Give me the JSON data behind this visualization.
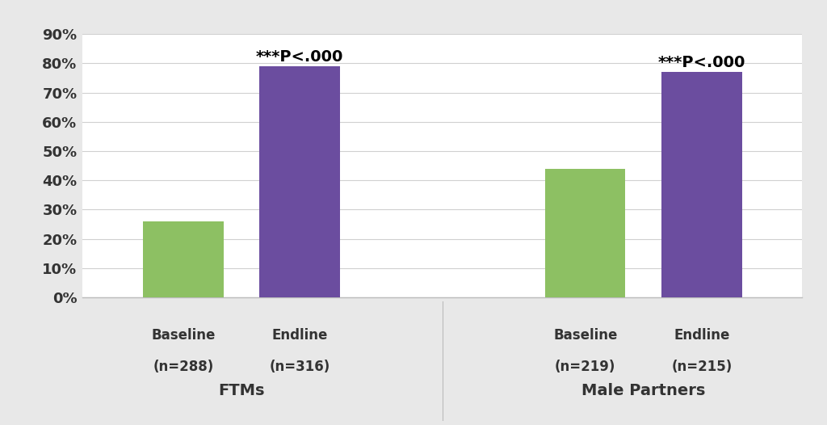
{
  "groups": [
    "FTMs",
    "Male Partners"
  ],
  "group_centers": [
    1.15,
    3.05
  ],
  "bars": [
    {
      "label": "Baseline\n(n=288)",
      "value": 0.26,
      "color": "#8dc063",
      "group": 0
    },
    {
      "label": "Endline\n(n=316)",
      "value": 0.79,
      "color": "#6b4d9f",
      "group": 0,
      "annotation": "***P<.000"
    },
    {
      "label": "Baseline\n(n=219)",
      "value": 0.44,
      "color": "#8dc063",
      "group": 1
    },
    {
      "label": "Endline\n(n=215)",
      "value": 0.77,
      "color": "#6b4d9f",
      "group": 1,
      "annotation": "***P<.000"
    }
  ],
  "ylim": [
    0,
    0.9
  ],
  "yticks": [
    0.0,
    0.1,
    0.2,
    0.3,
    0.4,
    0.5,
    0.6,
    0.7,
    0.8,
    0.9
  ],
  "ytick_labels": [
    "0%",
    "10%",
    "20%",
    "30%",
    "40%",
    "50%",
    "60%",
    "70%",
    "80%",
    "90%"
  ],
  "outer_bg_color": "#e8e8e8",
  "plot_bg_color": "#ffffff",
  "bar_width": 0.38,
  "bar_gap": 0.55,
  "annotation_fontsize": 14,
  "tick_label_fontsize": 13,
  "group_label_fontsize": 14,
  "bar_label_fontsize": 12,
  "grid_color": "#d0d0d0",
  "label_box_color": "#f5f5f5",
  "separator_color": "#bbbbbb"
}
